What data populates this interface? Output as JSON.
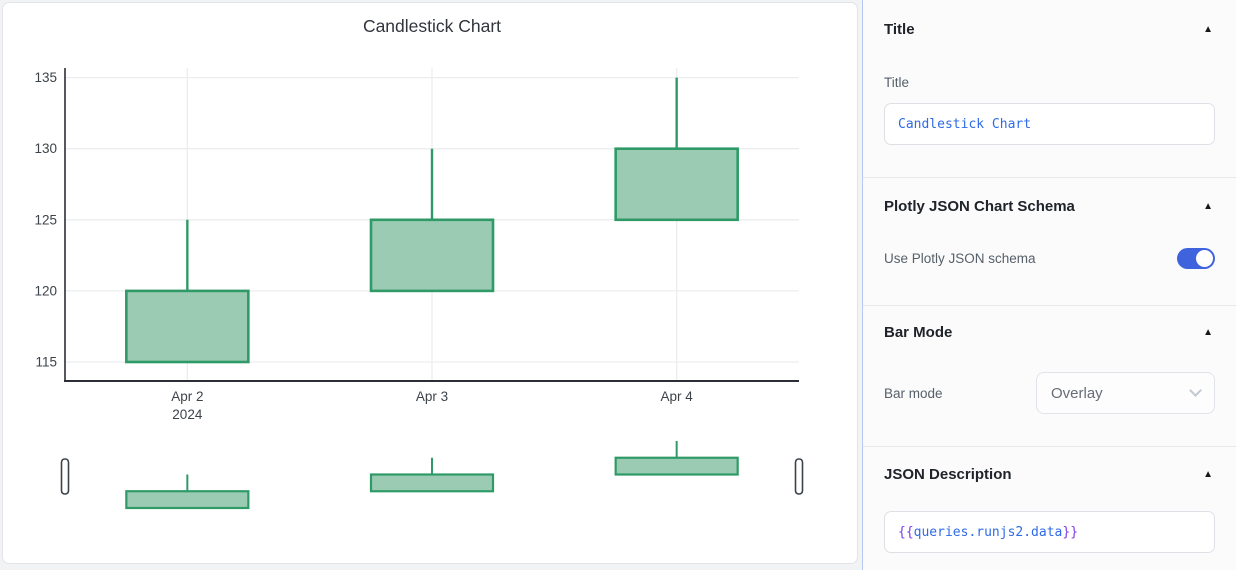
{
  "chart_data": {
    "type": "candlestick",
    "title": "Candlestick Chart",
    "x": [
      "Apr 2",
      "Apr 3",
      "Apr 4"
    ],
    "x_tick_sub": [
      "2024",
      "",
      ""
    ],
    "ohlc": [
      {
        "x": "Apr 2",
        "open": 115,
        "high": 125,
        "low": 115,
        "close": 120
      },
      {
        "x": "Apr 3",
        "open": 120,
        "high": 130,
        "low": 120,
        "close": 125
      },
      {
        "x": "Apr 4",
        "open": 125,
        "high": 135,
        "low": 125,
        "close": 130
      }
    ],
    "yticks": [
      115,
      120,
      125,
      130,
      135
    ],
    "ylim": [
      113.6,
      135.9
    ],
    "grid": true,
    "legend": "none",
    "rangeslider": true,
    "increasing_line_color": "#2f9a67",
    "increasing_fill_color": "#9ccbb4"
  },
  "panel": {
    "collapse_icon": "▲",
    "accent_color": "#3e63dd",
    "title_section": {
      "header": "Title",
      "field_label": "Title",
      "input_value": "Candlestick Chart"
    },
    "schema_section": {
      "header": "Plotly JSON Chart Schema",
      "toggle_label": "Use Plotly JSON schema",
      "toggle_on": true
    },
    "barmode_section": {
      "header": "Bar Mode",
      "field_label": "Bar mode",
      "selected_option": "Overlay"
    },
    "json_section": {
      "header": "JSON Description",
      "open_braces": "{{",
      "expression": "queries.runjs2.data",
      "close_braces": "}}"
    }
  }
}
